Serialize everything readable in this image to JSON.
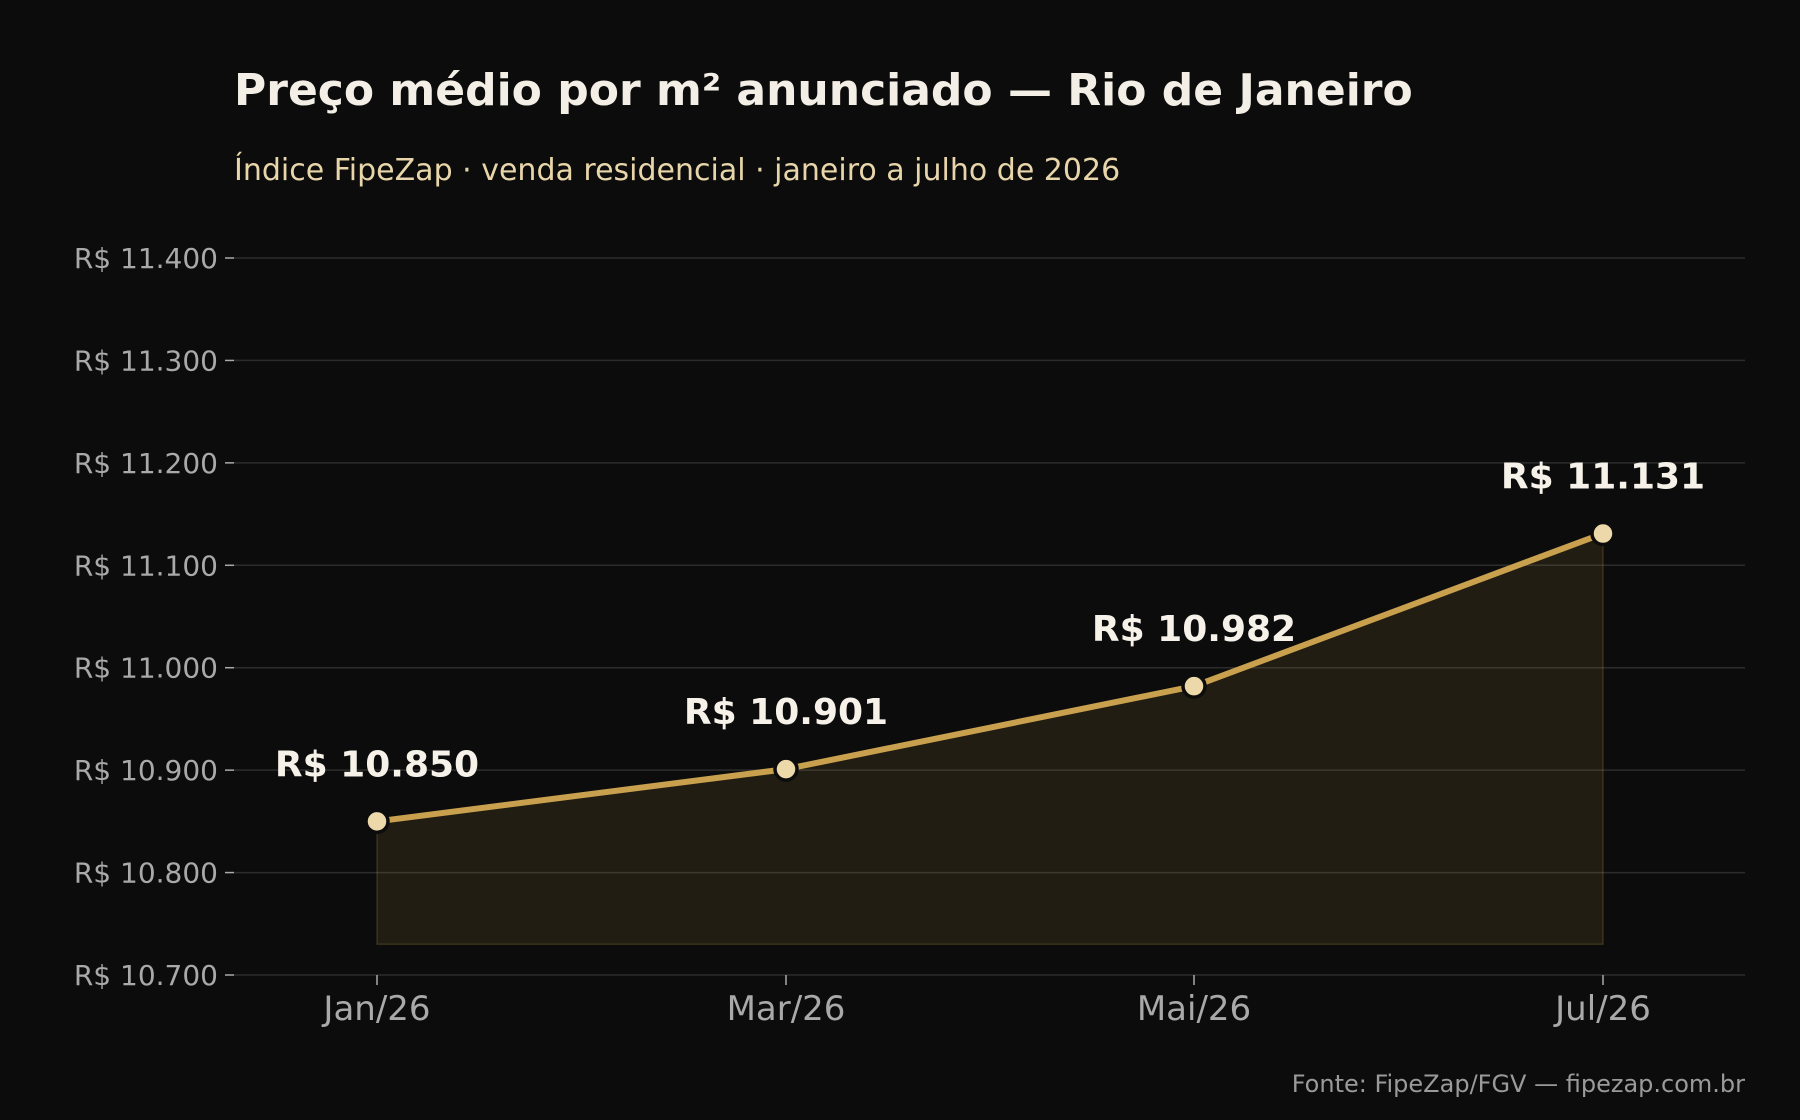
{
  "chart_data": {
    "type": "line",
    "title": "Preço médio por m² anunciado — Rio de Janeiro",
    "subtitle": "Índice FipeZap · venda residencial · janeiro a julho de 2026",
    "x": [
      "Jan/26",
      "Mar/26",
      "Mai/26",
      "Jul/26"
    ],
    "series": [
      {
        "values": [
          10850,
          10901,
          10982,
          11131
        ],
        "labels": [
          "R$ 10.850",
          "R$ 10.901",
          "R$ 10.982",
          "R$ 11.131"
        ]
      }
    ],
    "ylim": [
      10700,
      11400
    ],
    "yticks": [
      10700,
      10800,
      10900,
      11000,
      11100,
      11200,
      11300,
      11400
    ],
    "ytick_labels": [
      "R$ 10.700",
      "R$ 10.800",
      "R$ 10.900",
      "R$ 11.000",
      "R$ 11.100",
      "R$ 11.200",
      "R$ 11.300",
      "R$ 11.400"
    ],
    "area_fill": true,
    "area_baseline": 10730,
    "grid": "horizontal",
    "source": "Fonte: FipeZap/FGV — fipezap.com.br",
    "colors": {
      "background": "#0c0c0c",
      "line": "#c9a04e",
      "marker_fill": "#ecd8a8",
      "marker_edge": "#0c0c0c",
      "area": "#c9a04e",
      "grid": "#2c2c2c"
    }
  }
}
